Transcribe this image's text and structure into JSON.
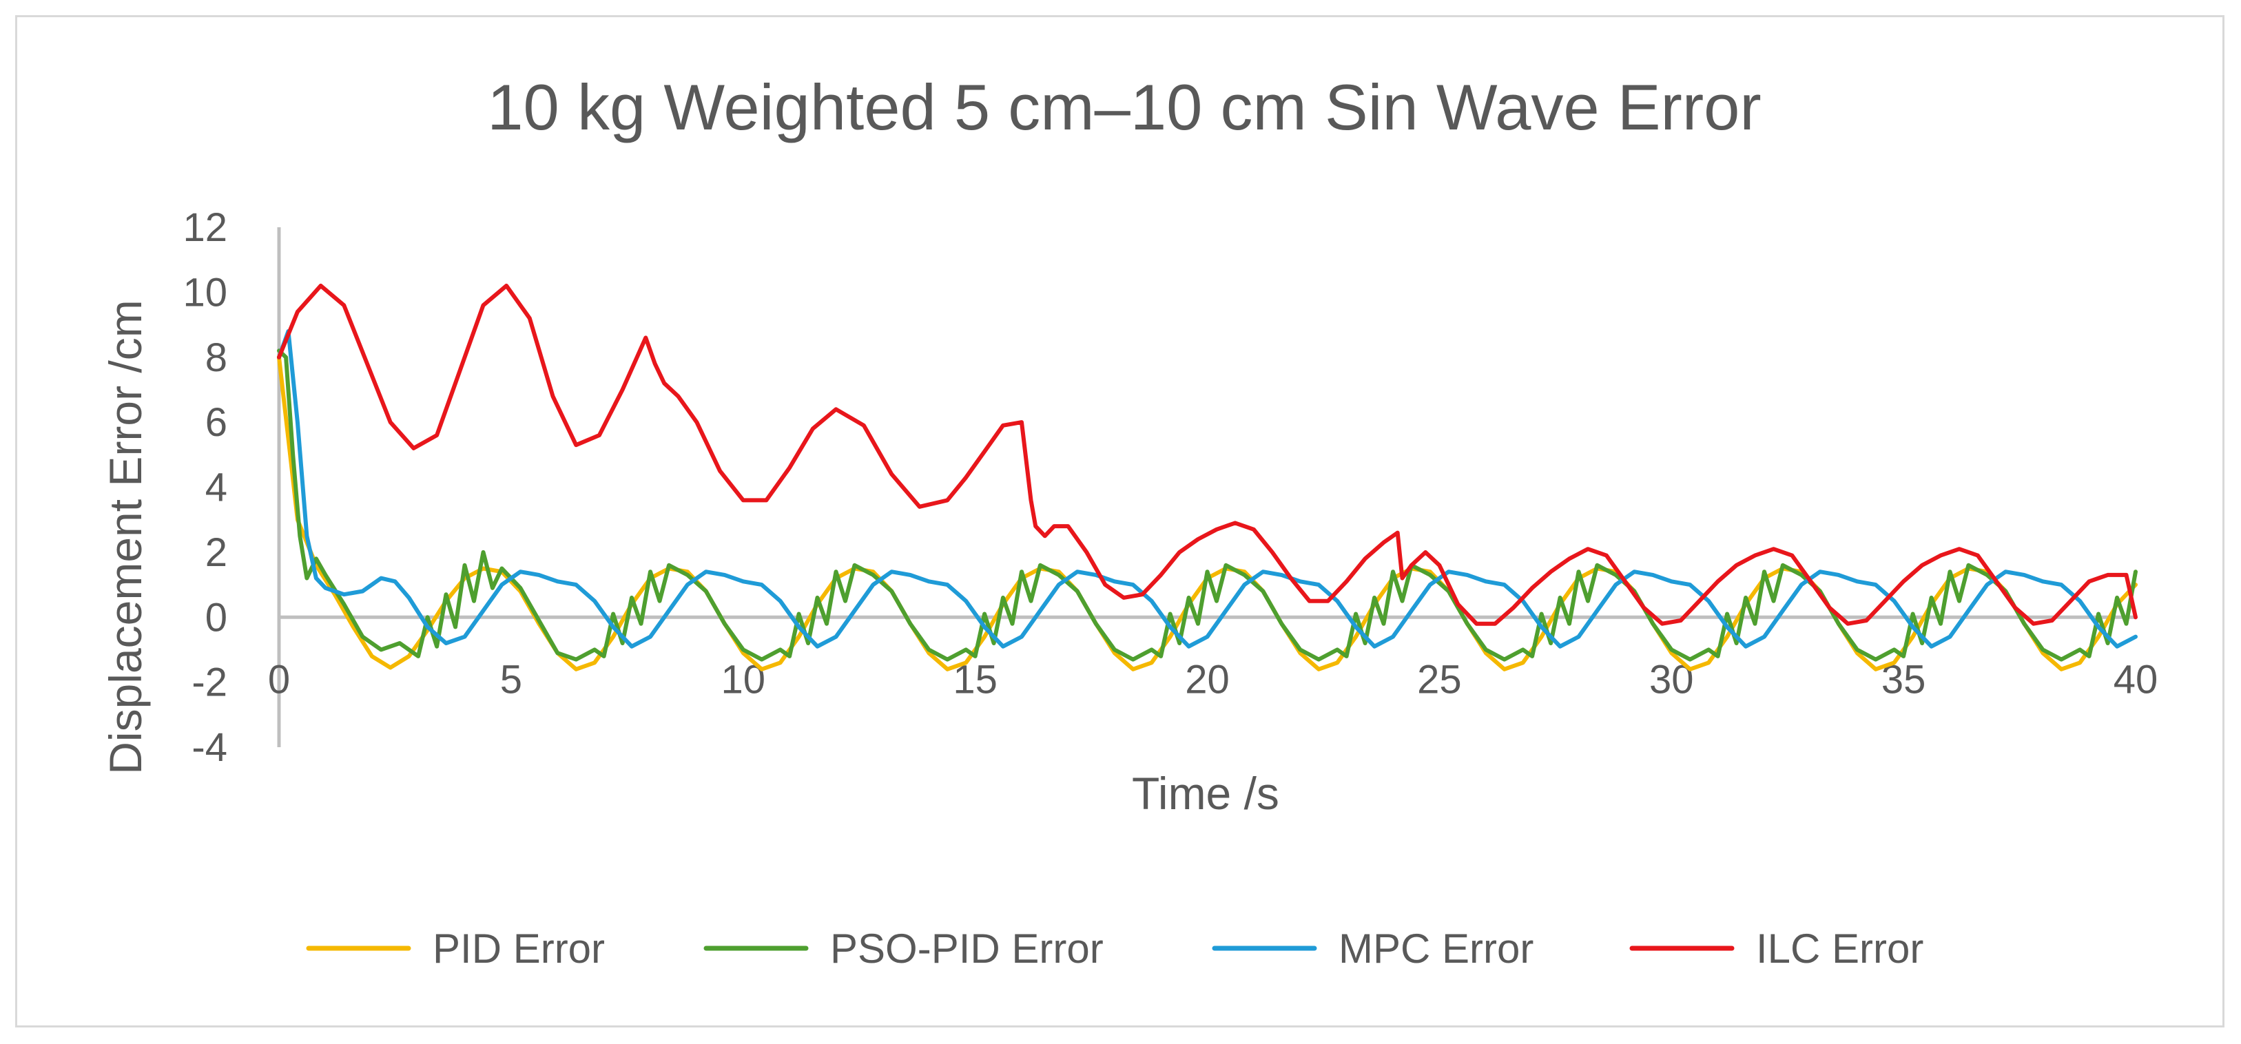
{
  "chart_data": {
    "type": "line",
    "title": "10 kg Weighted 5 cm–10 cm Sin Wave Error",
    "xlabel": "Time /s",
    "ylabel": "Displacement Error /cm",
    "xlim": [
      0,
      40
    ],
    "ylim": [
      -4,
      12
    ],
    "xticks": [
      0,
      5,
      10,
      15,
      20,
      25,
      30,
      35,
      40
    ],
    "yticks": [
      -4,
      -2,
      0,
      2,
      4,
      6,
      8,
      10,
      12
    ],
    "grid": false,
    "legend_position": "bottom",
    "series": [
      {
        "name": "PID Error",
        "color": "#f5b800",
        "x": [
          0,
          0.2,
          0.4,
          0.6,
          0.8,
          1.2,
          1.6,
          2.0,
          2.4,
          2.8,
          3.2,
          3.6,
          4.0,
          4.4,
          4.8,
          5.2,
          5.6,
          6.0,
          6.4,
          6.8,
          7.2,
          7.6,
          8.0,
          8.4,
          8.8,
          9.2,
          9.6,
          10.0,
          10.4,
          10.8,
          11.2,
          11.6,
          12.0,
          12.4,
          12.8,
          13.2,
          13.6,
          14.0,
          14.4,
          14.8,
          15.2,
          15.6,
          16.0,
          16.4,
          16.8,
          17.2,
          17.6,
          18.0,
          18.4,
          18.8,
          19.2,
          19.6,
          20.0,
          20.4,
          20.8,
          21.2,
          21.6,
          22.0,
          22.4,
          22.8,
          23.2,
          23.6,
          24.0,
          24.4,
          24.8,
          25.2,
          25.6,
          26.0,
          26.4,
          26.8,
          27.2,
          27.6,
          28.0,
          28.4,
          28.8,
          29.2,
          29.6,
          30.0,
          30.4,
          30.8,
          31.2,
          31.6,
          32.0,
          32.4,
          32.8,
          33.2,
          33.6,
          34.0,
          34.4,
          34.8,
          35.2,
          35.6,
          36.0,
          36.4,
          36.8,
          37.2,
          37.6,
          38.0,
          38.4,
          38.8,
          39.2,
          39.6,
          40.0
        ],
        "y": [
          8.0,
          5.5,
          3.0,
          2.3,
          1.6,
          0.7,
          -0.3,
          -1.2,
          -1.55,
          -1.2,
          -0.4,
          0.5,
          1.2,
          1.5,
          1.4,
          0.8,
          -0.2,
          -1.1,
          -1.6,
          -1.4,
          -0.6,
          0.4,
          1.2,
          1.5,
          1.4,
          0.8,
          -0.2,
          -1.1,
          -1.6,
          -1.4,
          -0.6,
          0.4,
          1.2,
          1.5,
          1.4,
          0.8,
          -0.2,
          -1.1,
          -1.6,
          -1.4,
          -0.6,
          0.4,
          1.2,
          1.5,
          1.4,
          0.8,
          -0.2,
          -1.1,
          -1.6,
          -1.4,
          -0.6,
          0.4,
          1.2,
          1.5,
          1.4,
          0.8,
          -0.2,
          -1.1,
          -1.6,
          -1.4,
          -0.6,
          0.4,
          1.2,
          1.5,
          1.4,
          0.8,
          -0.2,
          -1.1,
          -1.6,
          -1.4,
          -0.6,
          0.4,
          1.2,
          1.5,
          1.4,
          0.8,
          -0.2,
          -1.1,
          -1.6,
          -1.4,
          -0.6,
          0.4,
          1.2,
          1.5,
          1.4,
          0.8,
          -0.2,
          -1.1,
          -1.6,
          -1.4,
          -0.6,
          0.4,
          1.2,
          1.5,
          1.4,
          0.8,
          -0.2,
          -1.1,
          -1.6,
          -1.4,
          -0.6,
          0.4,
          1.0
        ]
      },
      {
        "name": "PSO-PID Error",
        "color": "#4e9f2f",
        "x": [
          0,
          0.15,
          0.3,
          0.45,
          0.6,
          0.8,
          1.0,
          1.4,
          1.8,
          2.2,
          2.6,
          3.0,
          3.2,
          3.4,
          3.6,
          3.8,
          4.0,
          4.2,
          4.4,
          4.6,
          4.8,
          5.2,
          5.6,
          6.0,
          6.4,
          6.8,
          7.0,
          7.2,
          7.4,
          7.6,
          7.8,
          8.0,
          8.2,
          8.4,
          8.8,
          9.2,
          9.6,
          10.0,
          10.4,
          10.8,
          11.0,
          11.2,
          11.4,
          11.6,
          11.8,
          12.0,
          12.2,
          12.4,
          12.8,
          13.2,
          13.6,
          14.0,
          14.4,
          14.8,
          15.0,
          15.2,
          15.4,
          15.6,
          15.8,
          16.0,
          16.2,
          16.4,
          16.8,
          17.2,
          17.6,
          18.0,
          18.4,
          18.8,
          19.0,
          19.2,
          19.4,
          19.6,
          19.8,
          20.0,
          20.2,
          20.4,
          20.8,
          21.2,
          21.6,
          22.0,
          22.4,
          22.8,
          23.0,
          23.2,
          23.4,
          23.6,
          23.8,
          24.0,
          24.2,
          24.4,
          24.8,
          25.2,
          25.6,
          26.0,
          26.4,
          26.8,
          27.0,
          27.2,
          27.4,
          27.6,
          27.8,
          28.0,
          28.2,
          28.4,
          28.8,
          29.2,
          29.6,
          30.0,
          30.4,
          30.8,
          31.0,
          31.2,
          31.4,
          31.6,
          31.8,
          32.0,
          32.2,
          32.4,
          32.8,
          33.2,
          33.6,
          34.0,
          34.4,
          34.8,
          35.0,
          35.2,
          35.4,
          35.6,
          35.8,
          36.0,
          36.2,
          36.4,
          36.8,
          37.2,
          37.6,
          38.0,
          38.4,
          38.8,
          39.0,
          39.2,
          39.4,
          39.6,
          39.8,
          40.0
        ],
        "y": [
          8.2,
          8.0,
          5.0,
          2.5,
          1.2,
          1.8,
          1.3,
          0.4,
          -0.6,
          -1.0,
          -0.8,
          -1.2,
          0.0,
          -0.9,
          0.7,
          -0.3,
          1.6,
          0.5,
          2.0,
          0.9,
          1.5,
          0.9,
          -0.1,
          -1.1,
          -1.3,
          -1.0,
          -1.2,
          0.1,
          -0.8,
          0.6,
          -0.2,
          1.4,
          0.5,
          1.6,
          1.3,
          0.8,
          -0.2,
          -1.0,
          -1.3,
          -1.0,
          -1.2,
          0.1,
          -0.8,
          0.6,
          -0.2,
          1.4,
          0.5,
          1.6,
          1.3,
          0.8,
          -0.2,
          -1.0,
          -1.3,
          -1.0,
          -1.2,
          0.1,
          -0.8,
          0.6,
          -0.2,
          1.4,
          0.5,
          1.6,
          1.3,
          0.8,
          -0.2,
          -1.0,
          -1.3,
          -1.0,
          -1.2,
          0.1,
          -0.8,
          0.6,
          -0.2,
          1.4,
          0.5,
          1.6,
          1.3,
          0.8,
          -0.2,
          -1.0,
          -1.3,
          -1.0,
          -1.2,
          0.1,
          -0.8,
          0.6,
          -0.2,
          1.4,
          0.5,
          1.6,
          1.3,
          0.8,
          -0.2,
          -1.0,
          -1.3,
          -1.0,
          -1.2,
          0.1,
          -0.8,
          0.6,
          -0.2,
          1.4,
          0.5,
          1.6,
          1.3,
          0.8,
          -0.2,
          -1.0,
          -1.3,
          -1.0,
          -1.2,
          0.1,
          -0.8,
          0.6,
          -0.2,
          1.4,
          0.5,
          1.6,
          1.3,
          0.8,
          -0.2,
          -1.0,
          -1.3,
          -1.0,
          -1.2,
          0.1,
          -0.8,
          0.6,
          -0.2,
          1.4,
          0.5,
          1.6,
          1.3,
          0.8,
          -0.2,
          -1.0,
          -1.3,
          -1.0,
          -1.2,
          0.1,
          -0.8,
          0.6,
          -0.2,
          1.4
        ]
      },
      {
        "name": "MPC Error",
        "color": "#1f9bd7",
        "x": [
          0,
          0.2,
          0.4,
          0.6,
          0.8,
          1.0,
          1.4,
          1.8,
          2.2,
          2.5,
          2.8,
          3.2,
          3.6,
          4.0,
          4.4,
          4.8,
          5.2,
          5.6,
          6.0,
          6.4,
          6.8,
          7.2,
          7.6,
          8.0,
          8.4,
          8.8,
          9.2,
          9.6,
          10.0,
          10.4,
          10.8,
          11.2,
          11.6,
          12.0,
          12.4,
          12.8,
          13.2,
          13.6,
          14.0,
          14.4,
          14.8,
          15.2,
          15.6,
          16.0,
          16.4,
          16.8,
          17.2,
          17.6,
          18.0,
          18.4,
          18.8,
          19.2,
          19.6,
          20.0,
          20.4,
          20.8,
          21.2,
          21.6,
          22.0,
          22.4,
          22.8,
          23.2,
          23.6,
          24.0,
          24.4,
          24.8,
          25.2,
          25.6,
          26.0,
          26.4,
          26.8,
          27.2,
          27.6,
          28.0,
          28.4,
          28.8,
          29.2,
          29.6,
          30.0,
          30.4,
          30.8,
          31.2,
          31.6,
          32.0,
          32.4,
          32.8,
          33.2,
          33.6,
          34.0,
          34.4,
          34.8,
          35.2,
          35.6,
          36.0,
          36.4,
          36.8,
          37.2,
          37.6,
          38.0,
          38.4,
          38.8,
          39.2,
          39.6,
          40.0
        ],
        "y": [
          8.0,
          8.8,
          6.0,
          2.5,
          1.2,
          0.9,
          0.7,
          0.8,
          1.2,
          1.1,
          0.6,
          -0.3,
          -0.8,
          -0.6,
          0.2,
          1.0,
          1.4,
          1.3,
          1.1,
          1.0,
          0.5,
          -0.3,
          -0.9,
          -0.6,
          0.2,
          1.0,
          1.4,
          1.3,
          1.1,
          1.0,
          0.5,
          -0.3,
          -0.9,
          -0.6,
          0.2,
          1.0,
          1.4,
          1.3,
          1.1,
          1.0,
          0.5,
          -0.3,
          -0.9,
          -0.6,
          0.2,
          1.0,
          1.4,
          1.3,
          1.1,
          1.0,
          0.5,
          -0.3,
          -0.9,
          -0.6,
          0.2,
          1.0,
          1.4,
          1.3,
          1.1,
          1.0,
          0.5,
          -0.3,
          -0.9,
          -0.6,
          0.2,
          1.0,
          1.4,
          1.3,
          1.1,
          1.0,
          0.5,
          -0.3,
          -0.9,
          -0.6,
          0.2,
          1.0,
          1.4,
          1.3,
          1.1,
          1.0,
          0.5,
          -0.3,
          -0.9,
          -0.6,
          0.2,
          1.0,
          1.4,
          1.3,
          1.1,
          1.0,
          0.5,
          -0.3,
          -0.9,
          -0.6,
          0.2,
          1.0,
          1.4,
          1.3,
          1.1,
          1.0,
          0.5,
          -0.3,
          -0.9,
          -0.6
        ]
      },
      {
        "name": "ILC Error",
        "color": "#e8161b",
        "x": [
          0,
          0.4,
          0.9,
          1.4,
          1.9,
          2.4,
          2.9,
          3.4,
          3.9,
          4.4,
          4.9,
          5.4,
          5.9,
          6.4,
          6.9,
          7.4,
          7.9,
          8.1,
          8.3,
          8.6,
          9.0,
          9.5,
          10.0,
          10.5,
          11.0,
          11.5,
          12.0,
          12.6,
          13.2,
          13.8,
          14.4,
          14.8,
          15.2,
          15.6,
          16.0,
          16.2,
          16.3,
          16.5,
          16.7,
          17.0,
          17.4,
          17.8,
          18.2,
          18.6,
          19.0,
          19.4,
          19.8,
          20.2,
          20.6,
          21.0,
          21.4,
          21.8,
          22.2,
          22.6,
          23.0,
          23.4,
          23.8,
          24.1,
          24.2,
          24.4,
          24.7,
          25.0,
          25.4,
          25.8,
          26.2,
          26.6,
          27.0,
          27.4,
          27.8,
          28.2,
          28.6,
          29.0,
          29.4,
          29.8,
          30.2,
          30.6,
          31.0,
          31.4,
          31.8,
          32.2,
          32.6,
          33.0,
          33.4,
          33.8,
          34.2,
          34.6,
          35.0,
          35.4,
          35.8,
          36.2,
          36.6,
          37.0,
          37.4,
          37.8,
          38.2,
          38.6,
          39.0,
          39.4,
          39.8,
          40.0
        ],
        "y": [
          8.0,
          9.4,
          10.2,
          9.6,
          7.8,
          6.0,
          5.2,
          5.6,
          7.6,
          9.6,
          10.2,
          9.2,
          6.8,
          5.3,
          5.6,
          7.0,
          8.6,
          7.8,
          7.2,
          6.8,
          6.0,
          4.5,
          3.6,
          3.6,
          4.6,
          5.8,
          6.4,
          5.9,
          4.4,
          3.4,
          3.6,
          4.3,
          5.1,
          5.9,
          6.0,
          3.6,
          2.8,
          2.5,
          2.8,
          2.8,
          2.0,
          1.0,
          0.6,
          0.7,
          1.3,
          2.0,
          2.4,
          2.7,
          2.9,
          2.7,
          2.0,
          1.2,
          0.5,
          0.5,
          1.1,
          1.8,
          2.3,
          2.6,
          1.2,
          1.6,
          2.0,
          1.6,
          0.4,
          -0.2,
          -0.2,
          0.3,
          0.9,
          1.4,
          1.8,
          2.1,
          1.9,
          1.1,
          0.3,
          -0.2,
          -0.1,
          0.5,
          1.1,
          1.6,
          1.9,
          2.1,
          1.9,
          1.1,
          0.3,
          -0.2,
          -0.1,
          0.5,
          1.1,
          1.6,
          1.9,
          2.1,
          1.9,
          1.1,
          0.3,
          -0.2,
          -0.1,
          0.5,
          1.1,
          1.3,
          1.3,
          0.0
        ]
      }
    ]
  }
}
